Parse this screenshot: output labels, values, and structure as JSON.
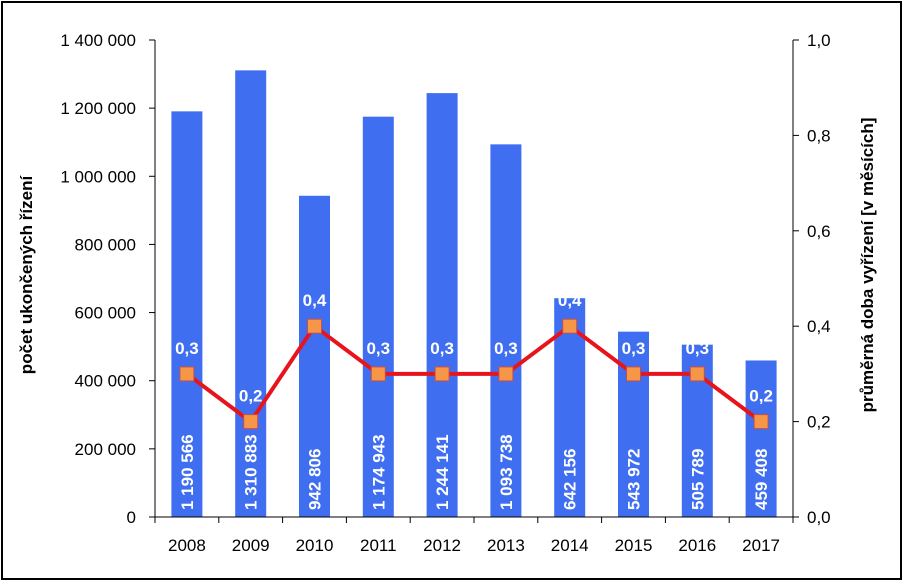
{
  "chart_data": {
    "type": "bar",
    "categories": [
      "2008",
      "2009",
      "2010",
      "2011",
      "2012",
      "2013",
      "2014",
      "2015",
      "2016",
      "2017"
    ],
    "series": [
      {
        "type": "bar",
        "axis": "left",
        "color": "#3f6ff0",
        "values": [
          1190566,
          1310883,
          942806,
          1174943,
          1244141,
          1093738,
          642156,
          543972,
          505789,
          459408
        ],
        "labels": [
          "1 190 566",
          "1 310 883",
          "942 806",
          "1 174 943",
          "1 244 141",
          "1 093 738",
          "642 156",
          "543 972",
          "505 789",
          "459 408"
        ]
      },
      {
        "type": "line",
        "axis": "right",
        "color": "#e8141c",
        "marker_color": "#f79646",
        "values": [
          0.3,
          0.2,
          0.4,
          0.3,
          0.3,
          0.3,
          0.4,
          0.3,
          0.3,
          0.2
        ],
        "labels": [
          "0,3",
          "0,2",
          "0,4",
          "0,3",
          "0,3",
          "0,3",
          "0,4",
          "0,3",
          "0,3",
          "0,2"
        ]
      }
    ],
    "ylabel": "počet ukončených řízení",
    "y2label": "průměrná doba vyřízení [v měsících]",
    "ylim": [
      0,
      1400000
    ],
    "y2lim": [
      0,
      1.0
    ],
    "yticks": [
      "0",
      "200 000",
      "400 000",
      "600 000",
      "800 000",
      "1 000 000",
      "1 200 000",
      "1 400 000"
    ],
    "y2ticks": [
      "0,0",
      "0,2",
      "0,4",
      "0,6",
      "0,8",
      "1,0"
    ],
    "grid": false,
    "legend": "none"
  }
}
